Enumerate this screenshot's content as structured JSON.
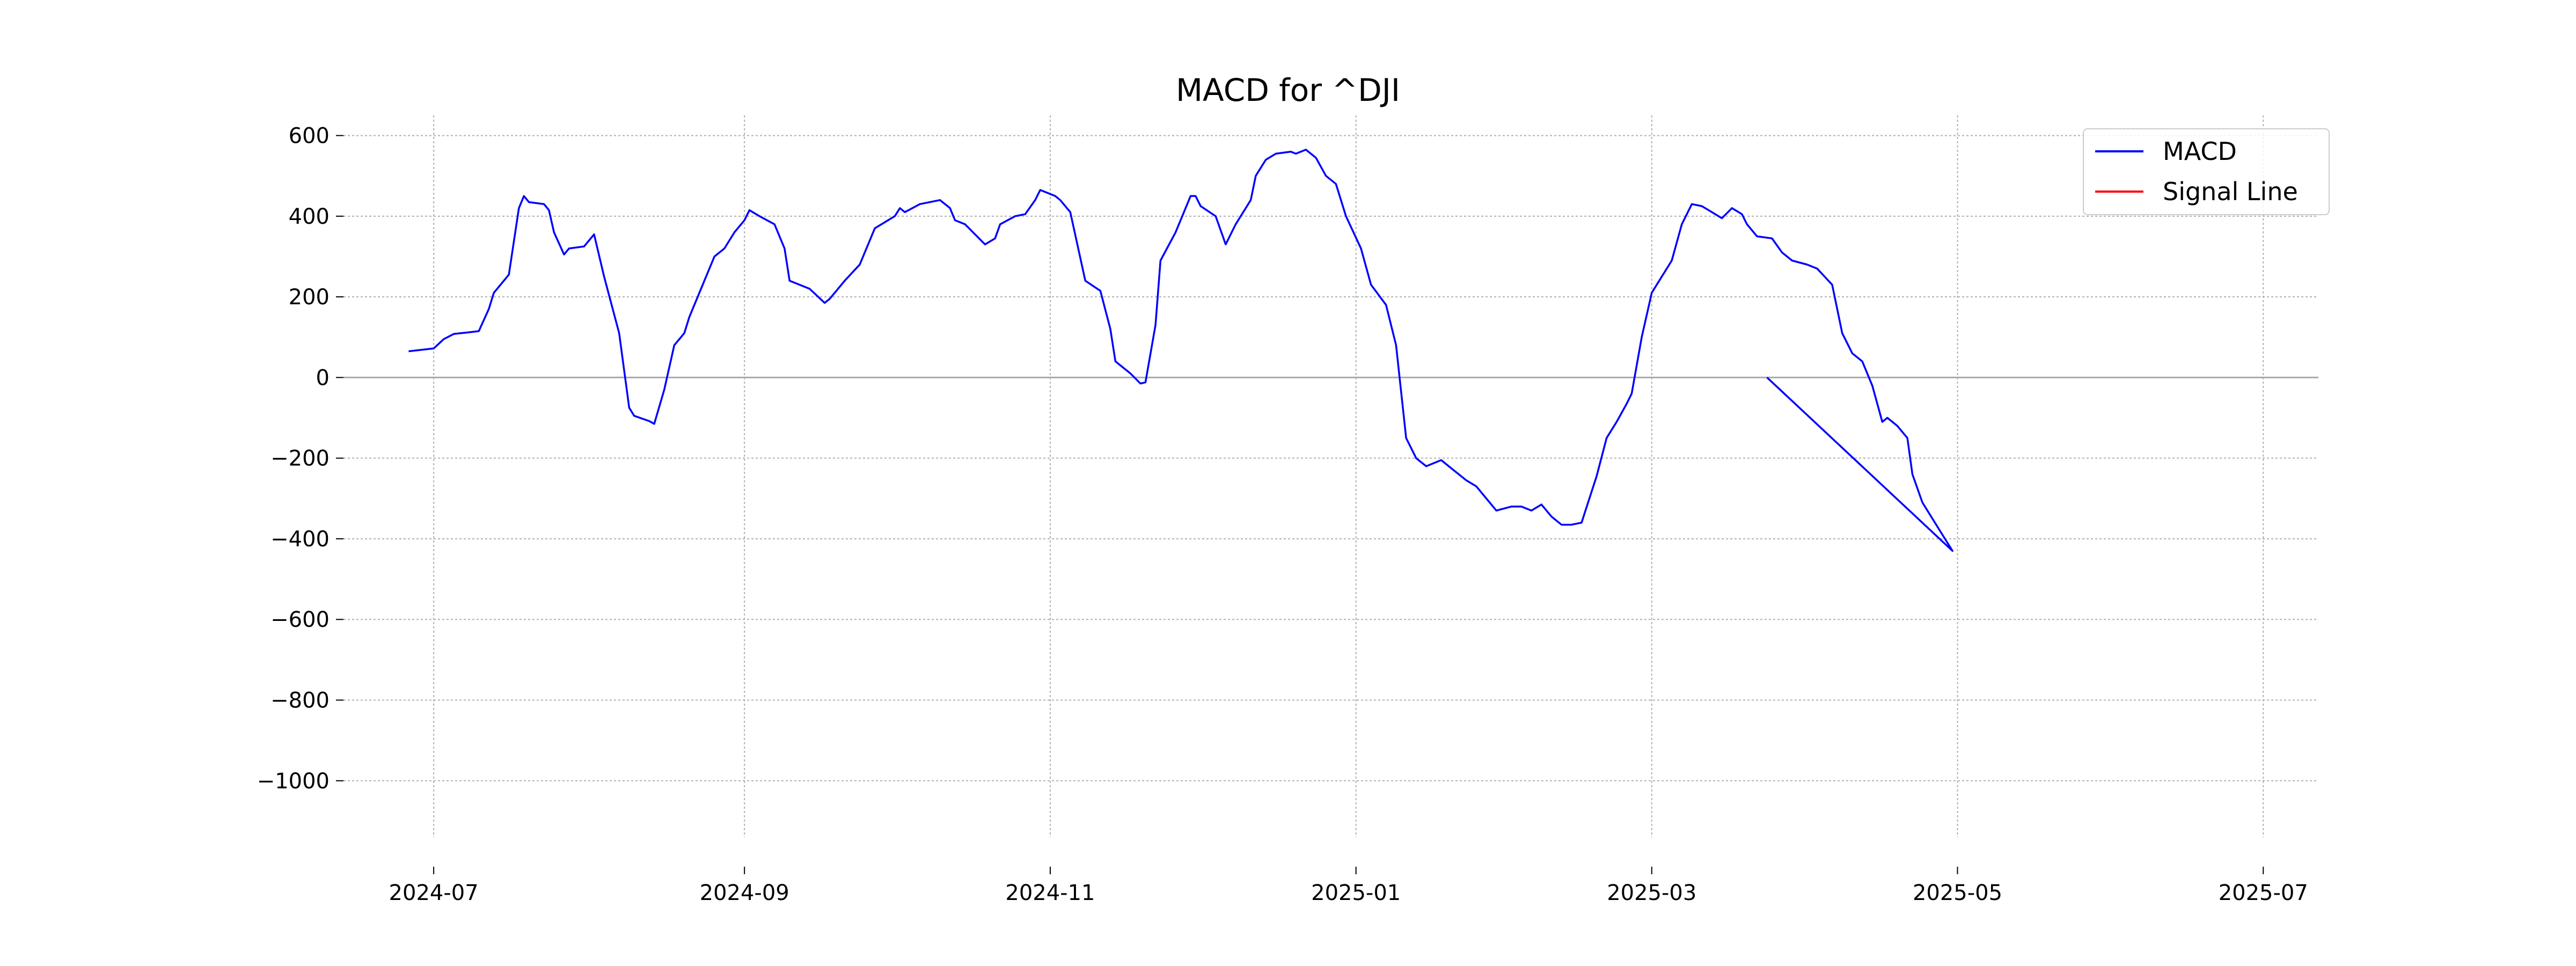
{
  "chart_data": {
    "type": "line",
    "title": "MACD for ^DJI",
    "xlabel": "",
    "ylabel": "",
    "xlim": [
      "2024-06-13",
      "2025-07-12"
    ],
    "ylim": [
      -1140,
      650
    ],
    "grid": true,
    "legend_position": "top-right",
    "x_ticks": [
      "2024-07-01",
      "2024-09-01",
      "2024-11-01",
      "2025-01-01",
      "2025-03-01",
      "2025-05-01",
      "2025-07-01"
    ],
    "x_tick_labels": [
      "2024-07",
      "2024-09",
      "2024-11",
      "2025-01",
      "2025-03",
      "2025-05",
      "2025-07"
    ],
    "y_ticks": [
      600,
      400,
      200,
      0,
      -200,
      -400,
      -600,
      -800,
      -1000
    ],
    "y_tick_labels": [
      "600",
      "400",
      "200",
      "0",
      "−200",
      "−400",
      "−600",
      "−800",
      "−1000"
    ],
    "series": [
      {
        "name": "MACD",
        "color": "#0000ff",
        "points": [
          [
            "2024-06-26",
            65
          ],
          [
            "2024-07-01",
            72
          ],
          [
            "2024-07-03",
            95
          ],
          [
            "2024-07-05",
            108
          ],
          [
            "2024-07-08",
            112
          ],
          [
            "2024-07-10",
            115
          ],
          [
            "2024-07-12",
            170
          ],
          [
            "2024-07-13",
            210
          ],
          [
            "2024-07-16",
            255
          ],
          [
            "2024-07-18",
            420
          ],
          [
            "2024-07-19",
            450
          ],
          [
            "2024-07-20",
            435
          ],
          [
            "2024-07-23",
            430
          ],
          [
            "2024-07-24",
            415
          ],
          [
            "2024-07-25",
            360
          ],
          [
            "2024-07-27",
            305
          ],
          [
            "2024-07-28",
            320
          ],
          [
            "2024-07-31",
            325
          ],
          [
            "2024-08-02",
            355
          ],
          [
            "2024-08-04",
            250
          ],
          [
            "2024-08-07",
            110
          ],
          [
            "2024-08-09",
            -75
          ],
          [
            "2024-08-10",
            -95
          ],
          [
            "2024-08-13",
            -108
          ],
          [
            "2024-08-14",
            -115
          ],
          [
            "2024-08-16",
            -30
          ],
          [
            "2024-08-18",
            80
          ],
          [
            "2024-08-20",
            110
          ],
          [
            "2024-08-21",
            150
          ],
          [
            "2024-08-24",
            240
          ],
          [
            "2024-08-26",
            300
          ],
          [
            "2024-08-28",
            320
          ],
          [
            "2024-08-30",
            360
          ],
          [
            "2024-09-01",
            390
          ],
          [
            "2024-09-02",
            415
          ],
          [
            "2024-09-04",
            400
          ],
          [
            "2024-09-07",
            380
          ],
          [
            "2024-09-09",
            320
          ],
          [
            "2024-09-10",
            240
          ],
          [
            "2024-09-14",
            220
          ],
          [
            "2024-09-17",
            185
          ],
          [
            "2024-09-18",
            195
          ],
          [
            "2024-09-21",
            240
          ],
          [
            "2024-09-24",
            280
          ],
          [
            "2024-09-27",
            370
          ],
          [
            "2024-09-29",
            385
          ],
          [
            "2024-10-01",
            400
          ],
          [
            "2024-10-02",
            420
          ],
          [
            "2024-10-03",
            410
          ],
          [
            "2024-10-06",
            430
          ],
          [
            "2024-10-10",
            440
          ],
          [
            "2024-10-12",
            420
          ],
          [
            "2024-10-13",
            390
          ],
          [
            "2024-10-15",
            380
          ],
          [
            "2024-10-17",
            355
          ],
          [
            "2024-10-19",
            330
          ],
          [
            "2024-10-21",
            345
          ],
          [
            "2024-10-22",
            380
          ],
          [
            "2024-10-25",
            400
          ],
          [
            "2024-10-27",
            405
          ],
          [
            "2024-10-29",
            440
          ],
          [
            "2024-10-30",
            465
          ],
          [
            "2024-11-02",
            450
          ],
          [
            "2024-11-03",
            440
          ],
          [
            "2024-11-05",
            410
          ],
          [
            "2024-11-08",
            240
          ],
          [
            "2024-11-11",
            215
          ],
          [
            "2024-11-13",
            120
          ],
          [
            "2024-11-14",
            40
          ],
          [
            "2024-11-17",
            10
          ],
          [
            "2024-11-19",
            -15
          ],
          [
            "2024-11-20",
            -12
          ],
          [
            "2024-11-22",
            130
          ],
          [
            "2024-11-23",
            290
          ],
          [
            "2024-11-26",
            360
          ],
          [
            "2024-11-29",
            450
          ],
          [
            "2024-11-30",
            450
          ],
          [
            "2024-12-01",
            425
          ],
          [
            "2024-12-04",
            400
          ],
          [
            "2024-12-06",
            330
          ],
          [
            "2024-12-08",
            380
          ],
          [
            "2024-12-11",
            440
          ],
          [
            "2024-12-12",
            500
          ],
          [
            "2024-12-14",
            540
          ],
          [
            "2024-12-16",
            555
          ],
          [
            "2024-12-19",
            560
          ],
          [
            "2024-12-20",
            555
          ],
          [
            "2024-12-22",
            565
          ],
          [
            "2024-12-24",
            545
          ],
          [
            "2024-12-26",
            500
          ],
          [
            "2024-12-28",
            480
          ],
          [
            "2024-12-30",
            400
          ],
          [
            "2025-01-02",
            320
          ],
          [
            "2025-01-04",
            230
          ],
          [
            "2025-01-07",
            180
          ],
          [
            "2025-01-09",
            80
          ],
          [
            "2025-01-11",
            -150
          ],
          [
            "2025-01-13",
            -200
          ],
          [
            "2025-01-15",
            -220
          ],
          [
            "2025-01-18",
            -205
          ],
          [
            "2025-01-20",
            -225
          ],
          [
            "2025-01-23",
            -255
          ],
          [
            "2025-01-25",
            -270
          ],
          [
            "2025-01-27",
            -300
          ],
          [
            "2025-01-29",
            -330
          ],
          [
            "2025-02-01",
            -320
          ],
          [
            "2025-02-03",
            -320
          ],
          [
            "2025-02-05",
            -330
          ],
          [
            "2025-02-07",
            -315
          ],
          [
            "2025-02-09",
            -345
          ],
          [
            "2025-02-11",
            -365
          ],
          [
            "2025-02-13",
            -365
          ],
          [
            "2025-02-15",
            -360
          ],
          [
            "2025-02-18",
            -245
          ],
          [
            "2025-02-20",
            -150
          ],
          [
            "2025-02-22",
            -110
          ],
          [
            "2025-02-24",
            -65
          ],
          [
            "2025-02-25",
            -40
          ],
          [
            "2025-02-27",
            100
          ],
          [
            "2025-03-01",
            210
          ],
          [
            "2025-03-03",
            250
          ],
          [
            "2025-03-05",
            290
          ],
          [
            "2025-03-07",
            380
          ],
          [
            "2025-03-09",
            430
          ],
          [
            "2025-03-11",
            425
          ],
          [
            "2025-03-13",
            410
          ],
          [
            "2025-03-15",
            395
          ],
          [
            "2025-03-17",
            420
          ],
          [
            "2025-03-19",
            405
          ],
          [
            "2025-03-20",
            380
          ],
          [
            "2025-03-22",
            350
          ],
          [
            "2025-03-25",
            345
          ],
          [
            "2025-03-27",
            310
          ],
          [
            "2025-03-29",
            290
          ],
          [
            "2025-04-01",
            280
          ],
          [
            "2025-04-03",
            270
          ],
          [
            "2025-04-06",
            230
          ],
          [
            "2025-04-08",
            110
          ],
          [
            "2025-04-10",
            60
          ],
          [
            "2025-04-12",
            40
          ],
          [
            "2025-04-14",
            -20
          ],
          [
            "2025-04-16",
            -110
          ],
          [
            "2025-04-17",
            -100
          ],
          [
            "2025-04-19",
            -120
          ],
          [
            "2025-04-21",
            -150
          ],
          [
            "2025-04-22",
            -240
          ],
          [
            "2025-04-24",
            -310
          ],
          [
            "2025-04-26",
            -350
          ],
          [
            "2025-04-28",
            -390
          ],
          [
            "2025-04-30",
            -430
          ],
          [
            "2025-03-24",
            0
          ]
        ]
      },
      {
        "name": "Signal Line",
        "color": "#ff0000",
        "points": []
      }
    ]
  }
}
